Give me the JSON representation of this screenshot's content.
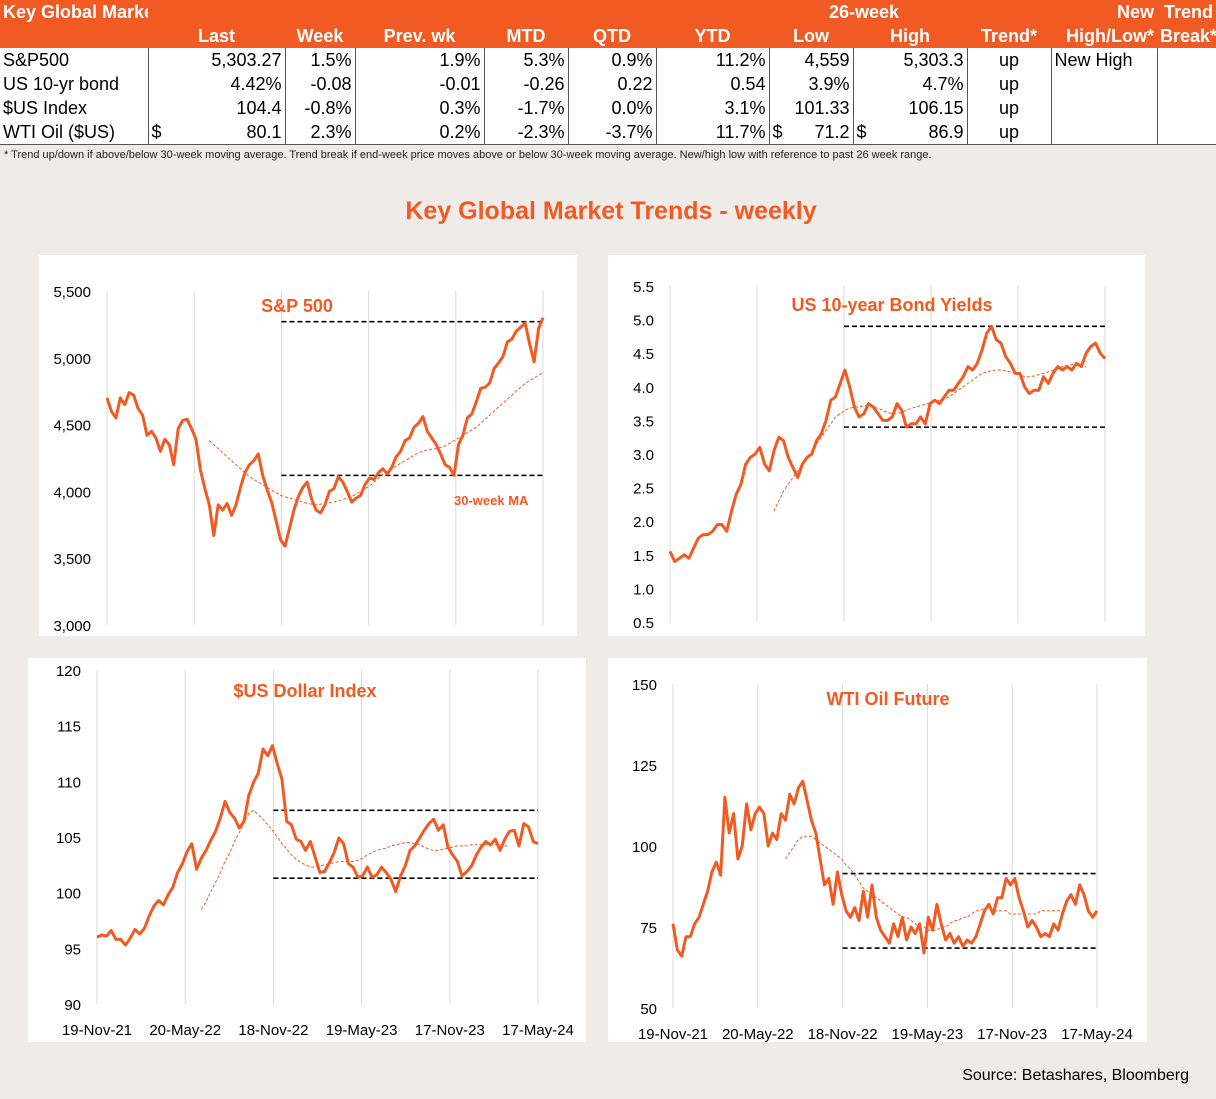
{
  "table": {
    "header1": [
      "Key Global Markets",
      "",
      "",
      "",
      "",
      "",
      "",
      "26-week",
      "",
      "",
      "New",
      "Trend"
    ],
    "header2": [
      "",
      "Last",
      "Week",
      "Prev. wk",
      "MTD",
      "QTD",
      "YTD",
      "Low",
      "High",
      "Trend*",
      "High/Low*",
      "Break*"
    ],
    "rows": [
      {
        "name": "S&P500",
        "last": "5,303.27",
        "week": "1.5%",
        "prev": "1.9%",
        "mtd": "5.3%",
        "qtd": "0.9%",
        "ytd": "11.2%",
        "low": "4,559",
        "high": "5,303.3",
        "trend": "up",
        "newhl": "New High",
        "brk": ""
      },
      {
        "name": "US 10-yr bond",
        "last": "4.42%",
        "week": "-0.08",
        "prev": "-0.01",
        "mtd": "-0.26",
        "qtd": "0.22",
        "ytd": "0.54",
        "low": "3.9%",
        "high": "4.7%",
        "trend": "up",
        "newhl": "",
        "brk": ""
      },
      {
        "name": "$US Index",
        "last": "104.4",
        "week": "-0.8%",
        "prev": "0.3%",
        "mtd": "-1.7%",
        "qtd": "0.0%",
        "ytd": "3.1%",
        "low": "101.33",
        "high": "106.15",
        "trend": "up",
        "newhl": "",
        "brk": ""
      },
      {
        "name": "WTI Oil ($US)",
        "last_cur": "$",
        "last": "80.1",
        "week": "2.3%",
        "prev": "0.2%",
        "mtd": "-2.3%",
        "qtd": "-3.7%",
        "ytd": "11.7%",
        "low_cur": "$",
        "low": "71.2",
        "high_cur": "$",
        "high": "86.9",
        "trend": "up",
        "newhl": "",
        "brk": ""
      }
    ]
  },
  "footnote": "*  Trend up/down if above/below 30-week moving average. Trend break if end-week price moves above or below 30-week moving average.  New/high low with reference to past 26 week range.",
  "main_title": "Key Global Market Trends - weekly",
  "source": "Source: Betashares, Bloomberg",
  "colors": {
    "accent": "#f15a22",
    "line": "#f15a22",
    "ma": "#f15a22",
    "band": "#000000"
  },
  "chart_data": [
    {
      "type": "line",
      "title": "S&P 500",
      "annotation": "30-week MA",
      "ylim": [
        3000,
        5500
      ],
      "yticks": [
        3000,
        3500,
        4000,
        4500,
        5000,
        5500
      ],
      "ytick_labels": [
        "3,000",
        "3,500",
        "4,000",
        "4,500",
        "5,000",
        "5,500"
      ],
      "xticks": [
        "19-Nov-21",
        "20-May-22",
        "18-Nov-22",
        "19-May-23",
        "17-Nov-23",
        "17-May-24"
      ],
      "show_xticks": false,
      "band": {
        "high": 5270,
        "low": 4120,
        "from_tick": 2
      },
      "series": [
        {
          "role": "price",
          "values": [
            4700,
            4600,
            4550,
            4700,
            4650,
            4740,
            4720,
            4620,
            4570,
            4420,
            4450,
            4400,
            4300,
            4390,
            4350,
            4200,
            4470,
            4530,
            4540,
            4470,
            4390,
            4160,
            4020,
            3900,
            3670,
            3900,
            3860,
            3910,
            3820,
            3900,
            4030,
            4140,
            4200,
            4230,
            4280,
            4120,
            4010,
            3920,
            3780,
            3640,
            3590,
            3720,
            3860,
            3960,
            4030,
            4070,
            3940,
            3860,
            3840,
            3900,
            4000,
            4020,
            4110,
            4070,
            4000,
            3920,
            3950,
            3970,
            4050,
            4100,
            4090,
            4140,
            4170,
            4130,
            4180,
            4260,
            4300,
            4380,
            4400,
            4480,
            4510,
            4560,
            4450,
            4400,
            4350,
            4280,
            4200,
            4180,
            4120,
            4350,
            4420,
            4550,
            4580,
            4670,
            4770,
            4780,
            4810,
            4920,
            4960,
            5010,
            5120,
            5140,
            5200,
            5230,
            5260,
            5100,
            4970,
            5220,
            5300
          ]
        },
        {
          "role": "ma",
          "values": [
            null,
            null,
            null,
            null,
            null,
            null,
            null,
            null,
            null,
            null,
            null,
            null,
            null,
            null,
            null,
            null,
            null,
            null,
            null,
            null,
            null,
            null,
            null,
            4380,
            4350,
            4320,
            4290,
            4260,
            4230,
            4200,
            4170,
            4140,
            4110,
            4090,
            4070,
            4050,
            4030,
            4010,
            3990,
            3970,
            3960,
            3950,
            3940,
            3930,
            3920,
            3910,
            3905,
            3900,
            3905,
            3910,
            3915,
            3920,
            3930,
            3940,
            3950,
            3960,
            3980,
            4000,
            4020,
            4040,
            4070,
            4100,
            4130,
            4150,
            4170,
            4190,
            4210,
            4230,
            4250,
            4270,
            4290,
            4300,
            4310,
            4315,
            4320,
            4330,
            4340,
            4360,
            4380,
            4400,
            4420,
            4440,
            4460,
            4480,
            4510,
            4540,
            4570,
            4600,
            4630,
            4660,
            4690,
            4720,
            4750,
            4780,
            4810,
            4830,
            4850,
            4870,
            4890
          ]
        }
      ]
    },
    {
      "type": "line",
      "title": "US 10-year Bond Yields",
      "ylim": [
        0.5,
        5.5
      ],
      "yticks": [
        0.5,
        1.0,
        1.5,
        2.0,
        2.5,
        3.0,
        3.5,
        4.0,
        4.5,
        5.0,
        5.5
      ],
      "ytick_labels": [
        "0.5",
        "1.0",
        "1.5",
        "2.0",
        "2.5",
        "3.0",
        "3.5",
        "4.0",
        "4.5",
        "5.0",
        "5.5"
      ],
      "xticks": [
        "19-Nov-21",
        "20-May-22",
        "18-Nov-22",
        "19-May-23",
        "17-Nov-23",
        "17-May-24"
      ],
      "show_xticks": false,
      "band": {
        "high": 4.9,
        "low": 3.4,
        "from_tick": 2
      },
      "series": [
        {
          "role": "price",
          "values": [
            1.55,
            1.4,
            1.45,
            1.5,
            1.45,
            1.6,
            1.75,
            1.8,
            1.8,
            1.85,
            1.95,
            1.95,
            1.85,
            2.15,
            2.4,
            2.55,
            2.85,
            2.95,
            3.0,
            3.1,
            2.85,
            2.75,
            3.05,
            3.25,
            3.2,
            2.95,
            2.8,
            2.65,
            2.85,
            2.95,
            3.0,
            3.2,
            3.3,
            3.5,
            3.8,
            3.85,
            4.05,
            4.25,
            4.0,
            3.7,
            3.55,
            3.6,
            3.75,
            3.7,
            3.6,
            3.5,
            3.5,
            3.55,
            3.75,
            3.65,
            3.4,
            3.45,
            3.45,
            3.55,
            3.45,
            3.75,
            3.8,
            3.75,
            3.85,
            3.95,
            3.95,
            4.05,
            4.15,
            4.3,
            4.25,
            4.35,
            4.55,
            4.8,
            4.9,
            4.7,
            4.65,
            4.45,
            4.35,
            4.2,
            4.2,
            4.0,
            3.9,
            3.95,
            3.95,
            4.15,
            4.05,
            4.2,
            4.3,
            4.25,
            4.3,
            4.25,
            4.35,
            4.3,
            4.5,
            4.6,
            4.65,
            4.5,
            4.42
          ]
        },
        {
          "role": "ma",
          "values": [
            null,
            null,
            null,
            null,
            null,
            null,
            null,
            null,
            null,
            null,
            null,
            null,
            null,
            null,
            null,
            null,
            null,
            null,
            null,
            null,
            null,
            null,
            2.15,
            2.3,
            2.45,
            2.55,
            2.65,
            2.75,
            2.85,
            2.95,
            3.05,
            3.15,
            3.25,
            3.35,
            3.45,
            3.55,
            3.6,
            3.65,
            3.68,
            3.7,
            3.7,
            3.72,
            3.72,
            3.7,
            3.68,
            3.65,
            3.62,
            3.6,
            3.6,
            3.62,
            3.65,
            3.68,
            3.7,
            3.72,
            3.74,
            3.76,
            3.78,
            3.8,
            3.82,
            3.85,
            3.9,
            3.95,
            4.0,
            4.05,
            4.1,
            4.15,
            4.2,
            4.22,
            4.24,
            4.25,
            4.25,
            4.24,
            4.22,
            4.2,
            4.18,
            4.15,
            4.15,
            4.16,
            4.18,
            4.2,
            4.22,
            4.25,
            4.28,
            4.3,
            4.32,
            4.33,
            4.32,
            4.3,
            4.3
          ]
        }
      ]
    },
    {
      "type": "line",
      "title": "$US Dollar Index",
      "ylim": [
        90,
        120
      ],
      "yticks": [
        90,
        95,
        100,
        105,
        110,
        115,
        120
      ],
      "ytick_labels": [
        "90",
        "95",
        "100",
        "105",
        "110",
        "115",
        "120"
      ],
      "xticks": [
        "19-Nov-21",
        "20-May-22",
        "18-Nov-22",
        "19-May-23",
        "17-Nov-23",
        "17-May-24"
      ],
      "show_xticks": true,
      "band": {
        "high": 107.4,
        "low": 101.3,
        "from_tick": 2
      },
      "series": [
        {
          "role": "price",
          "values": [
            96,
            96.2,
            96.1,
            96.6,
            95.8,
            95.8,
            95.3,
            95.9,
            96.7,
            96.3,
            96.8,
            97.9,
            98.8,
            99.3,
            98.9,
            99.8,
            100.5,
            101.8,
            102.6,
            103.7,
            104.4,
            102.1,
            103.1,
            103.8,
            104.7,
            105.5,
            106.7,
            108.2,
            107.2,
            106.7,
            105.8,
            106.4,
            108.7,
            109.9,
            110.7,
            112.9,
            112.3,
            113.2,
            111.6,
            110.2,
            106.4,
            106.1,
            104.8,
            104.6,
            103.8,
            104.6,
            103.2,
            101.8,
            101.9,
            102.7,
            103.6,
            104.9,
            104.4,
            102.6,
            102.3,
            101.4,
            101.5,
            102.3,
            101.4,
            101.6,
            102.3,
            101.8,
            101.2,
            100.1,
            101.5,
            102.4,
            103.8,
            104.2,
            104.9,
            105.6,
            106.2,
            106.6,
            105.6,
            106.1,
            104.1,
            103.4,
            102.8,
            101.5,
            101.9,
            102.4,
            103.4,
            104.1,
            104.6,
            104.3,
            104.8,
            103.8,
            104.8,
            105.5,
            105.6,
            104.2,
            106.2,
            105.9,
            104.6,
            104.4
          ]
        },
        {
          "role": "ma",
          "values": [
            null,
            null,
            null,
            null,
            null,
            null,
            null,
            null,
            null,
            null,
            null,
            null,
            null,
            null,
            null,
            null,
            null,
            null,
            null,
            null,
            null,
            null,
            98.5,
            99.2,
            100.1,
            100.9,
            101.8,
            102.8,
            103.6,
            104.6,
            105.4,
            106.3,
            107.1,
            107.4,
            107.0,
            106.6,
            106.1,
            105.6,
            105.0,
            104.4,
            103.9,
            103.4,
            103.0,
            102.7,
            102.5,
            102.3,
            102.3,
            102.4,
            102.5,
            102.6,
            102.7,
            102.8,
            102.8,
            102.8,
            102.8,
            102.9,
            103.1,
            103.4,
            103.6,
            103.8,
            103.9,
            104.0,
            104.2,
            104.3,
            104.4,
            104.5,
            104.5,
            104.4,
            104.3,
            104.1,
            103.9,
            103.8,
            103.8,
            103.9,
            104.0,
            104.1,
            104.2,
            104.2,
            104.2,
            104.3,
            104.3,
            104.3,
            104.3,
            104.3,
            104.3,
            104.3,
            104.2,
            104.2
          ]
        }
      ]
    },
    {
      "type": "line",
      "title": "WTI Oil Future",
      "ylim": [
        50,
        150
      ],
      "yticks": [
        50,
        75,
        100,
        125,
        150
      ],
      "ytick_labels": [
        "50",
        "75",
        "100",
        "125",
        "150"
      ],
      "xticks": [
        "19-Nov-21",
        "20-May-22",
        "18-Nov-22",
        "19-May-23",
        "17-Nov-23",
        "17-May-24"
      ],
      "show_xticks": true,
      "band": {
        "high": 91.5,
        "low": 68.5,
        "from_tick": 2
      },
      "series": [
        {
          "role": "price",
          "values": [
            76,
            68,
            66,
            72,
            72,
            76,
            78,
            82,
            86,
            92,
            95,
            91,
            115,
            104,
            110,
            96,
            100,
            113,
            105,
            110,
            112,
            110,
            100,
            104,
            102,
            110,
            108,
            116,
            113,
            118,
            120,
            114,
            108,
            104,
            96,
            88,
            90,
            82,
            92,
            85,
            80,
            78,
            81,
            77,
            86,
            78,
            88,
            78,
            74,
            72,
            70,
            76,
            72,
            78,
            71,
            75,
            73,
            76,
            67,
            78,
            74,
            82,
            76,
            71,
            73,
            70,
            72,
            69,
            71,
            70,
            72,
            76,
            80,
            82,
            79,
            84,
            84,
            90,
            88,
            90,
            84,
            80,
            75,
            77,
            75,
            72,
            73,
            72,
            76,
            74,
            79,
            83,
            85,
            82,
            88,
            85,
            80,
            78,
            80
          ]
        },
        {
          "role": "ma",
          "values": [
            null,
            null,
            null,
            null,
            null,
            null,
            null,
            null,
            null,
            null,
            null,
            null,
            null,
            null,
            null,
            null,
            null,
            null,
            null,
            null,
            null,
            null,
            null,
            null,
            null,
            null,
            96,
            98,
            100,
            102,
            103,
            103,
            103,
            102,
            101,
            100,
            99,
            98,
            97,
            96,
            94,
            93,
            91,
            89,
            87,
            86,
            85,
            84,
            83,
            82,
            81,
            80,
            79,
            78,
            78,
            77,
            76,
            75,
            75,
            74,
            74,
            74,
            75,
            75,
            76,
            77,
            77,
            78,
            78,
            79,
            80,
            80,
            81,
            81,
            80,
            80,
            80,
            80,
            79,
            79,
            79,
            79,
            79,
            79,
            79,
            80,
            80,
            80,
            80,
            80,
            80,
            80
          ]
        }
      ]
    }
  ]
}
